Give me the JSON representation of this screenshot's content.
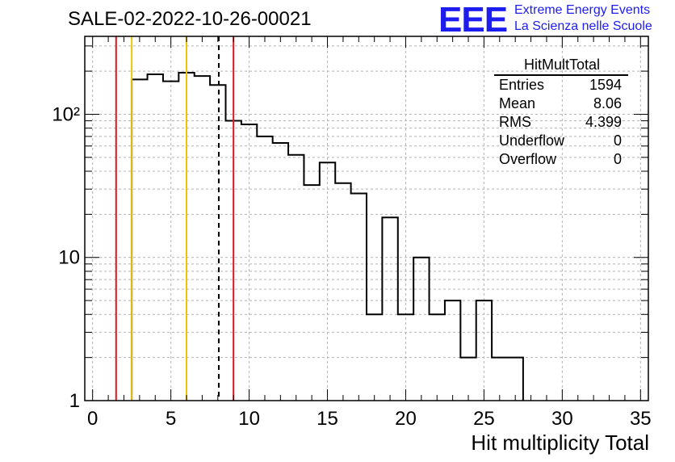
{
  "header": {
    "run_title": "SALE-02-2022-10-26-00021",
    "logo_text": "EEE",
    "logo_line1": "Extreme Energy Events",
    "logo_line2": "La Scienza nelle Scuole"
  },
  "stats_box": {
    "title": "HitMultTotal",
    "rows": [
      {
        "label": "Entries",
        "value": "1594"
      },
      {
        "label": "Mean",
        "value": "8.06"
      },
      {
        "label": "RMS",
        "value": "4.399"
      },
      {
        "label": "Underflow",
        "value": "0"
      },
      {
        "label": "Overflow",
        "value": "0"
      }
    ]
  },
  "chart_data": {
    "type": "histogram",
    "title": "SALE-02-2022-10-26-00021",
    "xlabel": "Hit multiplicity Total",
    "ylabel": "",
    "xlim": [
      -0.5,
      35.5
    ],
    "ylim": [
      1,
      350
    ],
    "y_scale": "log",
    "grid": true,
    "x_ticks": [
      0,
      5,
      10,
      15,
      20,
      25,
      30,
      35
    ],
    "x_tick_labels": [
      "0",
      "5",
      "10",
      "15",
      "20",
      "25",
      "30",
      "35"
    ],
    "y_tick_labels": [
      {
        "value": 1,
        "label": "1"
      },
      {
        "value": 10,
        "label": "10"
      },
      {
        "value": 100,
        "label": "10²"
      }
    ],
    "bin_width": 1,
    "bins": [
      {
        "x": 3,
        "count": 175
      },
      {
        "x": 4,
        "count": 190
      },
      {
        "x": 5,
        "count": 170
      },
      {
        "x": 6,
        "count": 195
      },
      {
        "x": 7,
        "count": 185
      },
      {
        "x": 8,
        "count": 160
      },
      {
        "x": 9,
        "count": 90
      },
      {
        "x": 10,
        "count": 85
      },
      {
        "x": 11,
        "count": 70
      },
      {
        "x": 12,
        "count": 63
      },
      {
        "x": 13,
        "count": 52
      },
      {
        "x": 14,
        "count": 32
      },
      {
        "x": 15,
        "count": 46
      },
      {
        "x": 16,
        "count": 33
      },
      {
        "x": 17,
        "count": 28
      },
      {
        "x": 18,
        "count": 4
      },
      {
        "x": 19,
        "count": 19
      },
      {
        "x": 20,
        "count": 4
      },
      {
        "x": 21,
        "count": 10
      },
      {
        "x": 22,
        "count": 4
      },
      {
        "x": 23,
        "count": 5
      },
      {
        "x": 24,
        "count": 2
      },
      {
        "x": 25,
        "count": 5
      },
      {
        "x": 26,
        "count": 2
      },
      {
        "x": 27,
        "count": 2
      }
    ],
    "vertical_lines": [
      {
        "x": 1.5,
        "color": "#e0141e",
        "style": "solid"
      },
      {
        "x": 2.5,
        "color": "#f2c200",
        "style": "solid"
      },
      {
        "x": 6.0,
        "color": "#f2c200",
        "style": "solid"
      },
      {
        "x": 8.06,
        "color": "#000000",
        "style": "dashed"
      },
      {
        "x": 9.0,
        "color": "#e0141e",
        "style": "solid"
      }
    ]
  }
}
